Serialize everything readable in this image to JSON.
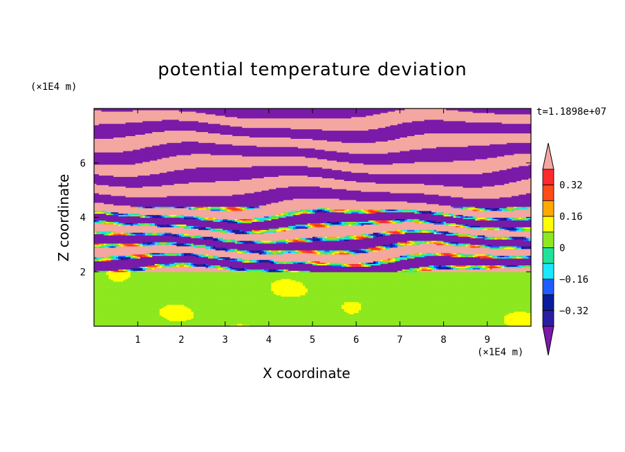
{
  "chart_data": {
    "type": "heatmap",
    "title": "potential temperature deviation",
    "xlabel": "X coordinate",
    "ylabel": "Z coordinate",
    "x_unit": "(×1E4 m)",
    "y_unit": "(×1E4 m)",
    "time_label": "t=1.1898e+07",
    "xlim": [
      0,
      10
    ],
    "ylim": [
      0,
      8
    ],
    "x_ticks": [
      "1",
      "2",
      "3",
      "4",
      "5",
      "6",
      "7",
      "8",
      "9"
    ],
    "y_ticks": [
      "2",
      "4",
      "6"
    ],
    "colorbar": {
      "labels": [
        "0.32",
        "0.16",
        "0",
        "-0.16",
        "-0.32"
      ],
      "levels": [
        -0.4,
        -0.32,
        -0.24,
        -0.16,
        -0.08,
        0,
        0.08,
        0.16,
        0.24,
        0.32,
        0.4
      ],
      "colors": [
        "#7a1aa8",
        "#2a1fa0",
        "#0a1c9c",
        "#1f5cff",
        "#19e8ff",
        "#1fe39a",
        "#8de81f",
        "#ffff00",
        "#ffa800",
        "#ff4a1a",
        "#ff2a2a",
        "#f4a6a0"
      ]
    },
    "field_description_lower_layer": "near-zero deviation (0 to 0.08) below z≈2, patches of -0.08 to 0",
    "field_description_upper_layer": "alternating horizontal bands of >0.4 and <-0.4 above z≈2"
  }
}
